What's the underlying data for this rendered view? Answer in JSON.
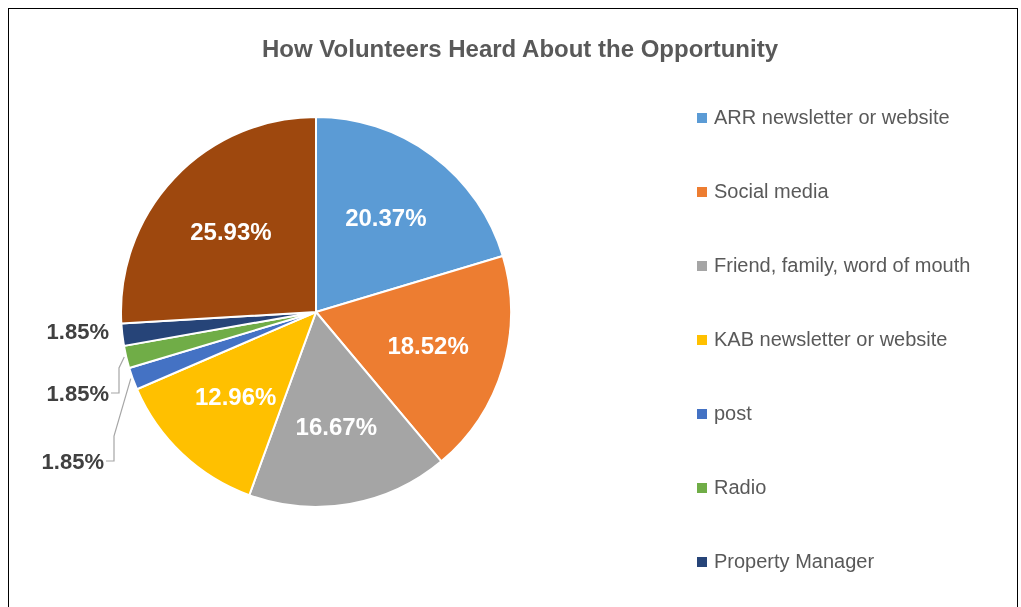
{
  "chart_data": {
    "type": "pie",
    "title": "How Volunteers Heard About the Opportunity",
    "categories": [
      "ARR newsletter or website",
      "Social media",
      "Friend, family, word of mouth",
      "KAB newsletter or website",
      "post",
      "Radio",
      "Property Manager",
      null
    ],
    "values": [
      20.37,
      18.52,
      16.67,
      12.96,
      1.85,
      1.85,
      1.85,
      25.93
    ],
    "value_labels": [
      "20.37%",
      "18.52%",
      "16.67%",
      "12.96%",
      "1.85%",
      "1.85%",
      "1.85%",
      "25.93%"
    ],
    "colors": [
      "#5b9bd5",
      "#ed7d31",
      "#a5a5a5",
      "#ffc000",
      "#4472c4",
      "#70ad47",
      "#264478",
      "#9e480e"
    ],
    "legend": "right"
  }
}
